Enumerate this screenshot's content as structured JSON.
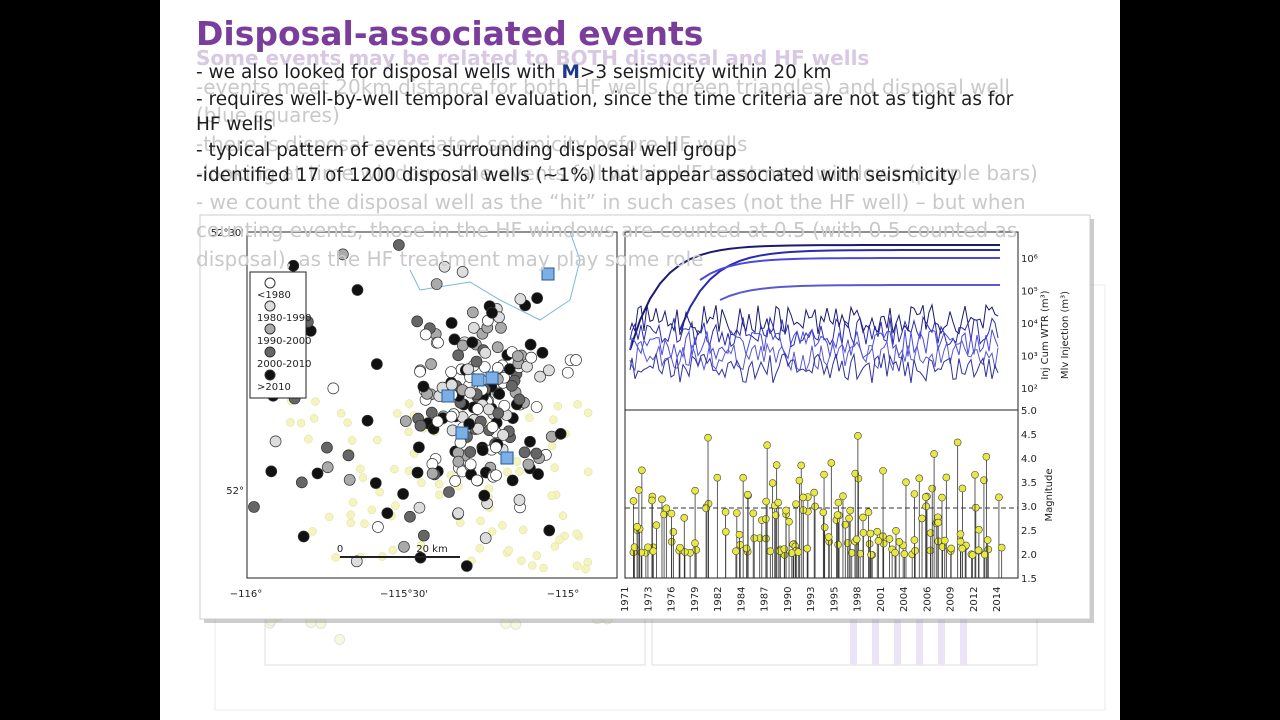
{
  "slide": {
    "title": "Disposal-associated events",
    "bullet_first": {
      "pre": "- we also looked for disposal wells with ",
      "bold": "M",
      "post": ">3 seismicity within 20 km"
    },
    "bullet_wrapped": [
      "- requires well-by-well temporal evaluation, since the time criteria are not as tight as for",
      "HF wells"
    ],
    "bullets": [
      "- typical pattern of events surrounding disposal well group",
      "-identified 17 of 1200 disposal wells (~1%) that appear associated with seismicity"
    ]
  },
  "ghost": {
    "lines": [
      "Some events may be related to BOTH disposal and HF wells",
      "-events meet 20km distance for both HF wells (green triangles) and disposal well",
      "(blue squares)",
      "-there is disposal-associated seismicity before HF wells",
      "-looking at time windows, the events fall within HF treatment windows (purple bars)",
      "- we count the disposal well as the “hit” in such cases (not the HF well) – but when",
      "counting events, those in the HF windows are counted at 0.5 (with 0.5 counted as",
      "disposal), as the HF treatment may play some role"
    ]
  },
  "figure": {
    "map": {
      "lon_labels": [
        "−116°",
        "−115°30'",
        "−115°"
      ],
      "lat_labels": [
        "52°30'",
        "52°"
      ],
      "legend": [
        "<1980",
        "1980-1990",
        "1990-2000",
        "2000-2010",
        ">2010"
      ],
      "scale": [
        "0",
        "20 km"
      ]
    },
    "top_plot": {
      "ticks": [
        "10⁶",
        "10⁵",
        "10⁴",
        "10³",
        "10²"
      ],
      "axis_labels": [
        "Inj Cum WTR (m³)",
        "Mlv Injection (m³)"
      ]
    },
    "bottom_plot": {
      "ticks": [
        "5.0",
        "4.5",
        "4.0",
        "3.5",
        "3.0",
        "2.5",
        "2.0",
        "1.5"
      ],
      "axis_label": "Magnitude",
      "years": [
        "1971",
        "1973",
        "1976",
        "1979",
        "1982",
        "1984",
        "1987",
        "1990",
        "1993",
        "1995",
        "1998",
        "2001",
        "2004",
        "2006",
        "2009",
        "2012",
        "2014"
      ]
    }
  }
}
